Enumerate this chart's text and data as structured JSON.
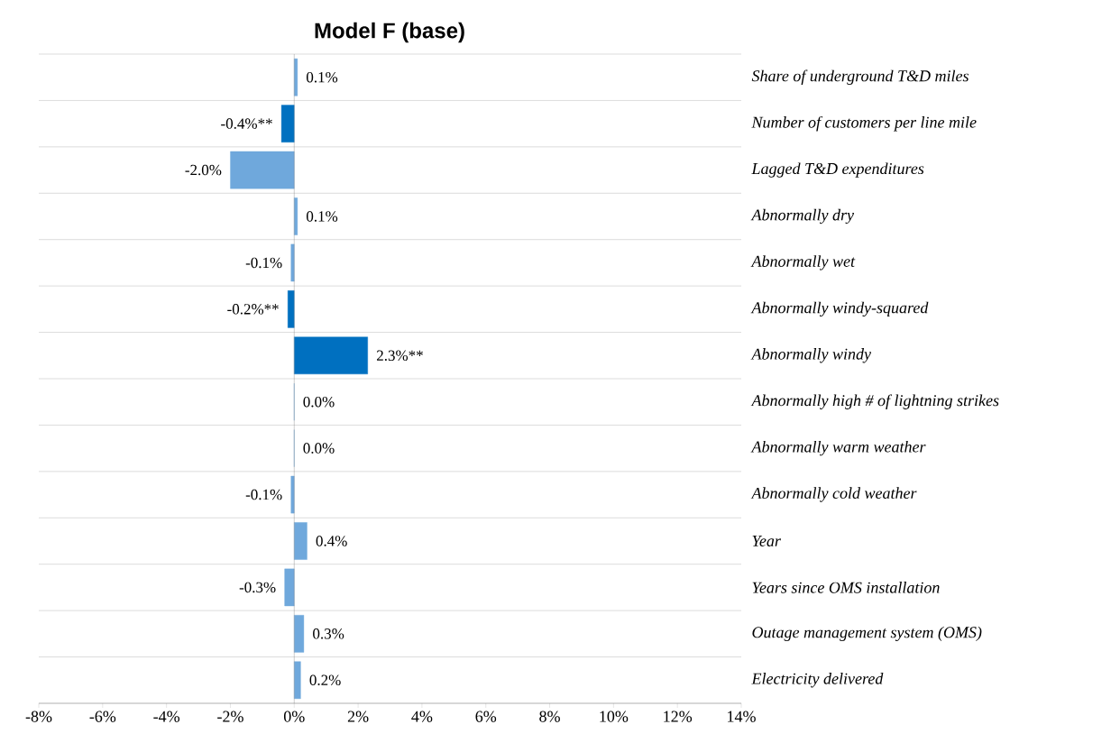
{
  "chart_data": {
    "type": "bar",
    "orientation": "horizontal",
    "title": "Model F (base)",
    "categories": [
      "Share of underground T&D miles",
      "Number of customers per line mile",
      "Lagged T&D expenditures",
      "Abnormally dry",
      "Abnormally wet",
      "Abnormally windy-squared",
      "Abnormally windy",
      "Abnormally high # of lightning strikes",
      "Abnormally warm weather",
      "Abnormally cold weather",
      "Year",
      "Years since OMS installation",
      "Outage management system (OMS)",
      "Electricity delivered"
    ],
    "values": [
      0.1,
      -0.4,
      -2.0,
      0.1,
      -0.1,
      -0.2,
      2.3,
      0.0,
      0.0,
      -0.1,
      0.4,
      -0.3,
      0.3,
      0.2
    ],
    "value_labels": [
      "0.1%",
      "-0.4%**",
      "-2.0%",
      "0.1%",
      "-0.1%",
      "-0.2%**",
      "2.3%**",
      "0.0%",
      "0.0%",
      "-0.1%",
      "0.4%",
      "-0.3%",
      "0.3%",
      "0.2%"
    ],
    "colors": [
      "#6fa8dc",
      "#0070c0",
      "#6fa8dc",
      "#6fa8dc",
      "#6fa8dc",
      "#0070c0",
      "#0070c0",
      "#6fa8dc",
      "#6fa8dc",
      "#6fa8dc",
      "#6fa8dc",
      "#6fa8dc",
      "#6fa8dc",
      "#6fa8dc"
    ],
    "xlim": [
      -8,
      14
    ],
    "xticks": [
      {
        "value": -8,
        "label": "-8%"
      },
      {
        "value": -6,
        "label": "-6%"
      },
      {
        "value": -4,
        "label": "-4%"
      },
      {
        "value": -2,
        "label": "-2%"
      },
      {
        "value": 0,
        "label": "0%"
      },
      {
        "value": 2,
        "label": "2%"
      },
      {
        "value": 4,
        "label": "4%"
      },
      {
        "value": 6,
        "label": "6%"
      },
      {
        "value": 8,
        "label": "8%"
      },
      {
        "value": 10,
        "label": "10%"
      },
      {
        "value": 12,
        "label": "12%"
      },
      {
        "value": 14,
        "label": "14%"
      }
    ],
    "grid": "y"
  }
}
